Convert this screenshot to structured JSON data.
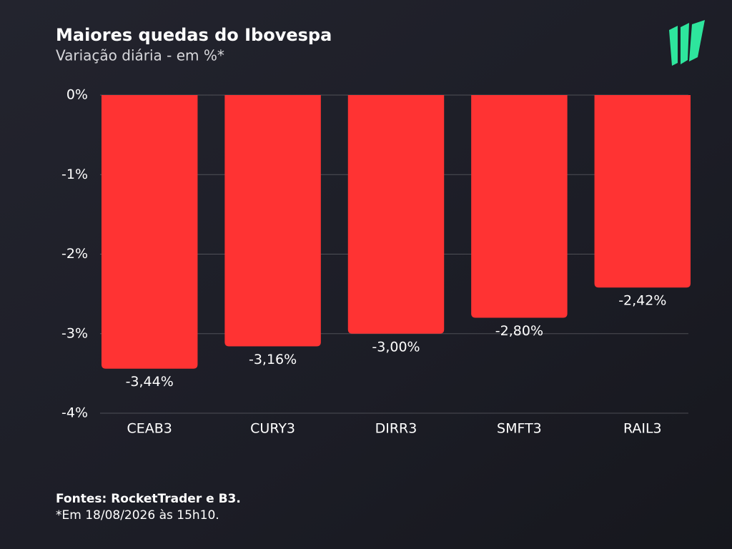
{
  "chart_data": {
    "type": "bar",
    "title": "Maiores quedas do Ibovespa",
    "subtitle": "Variação diária - em %*",
    "categories": [
      "CEAB3",
      "CURY3",
      "DIRR3",
      "SMFT3",
      "RAIL3"
    ],
    "values": [
      -3.44,
      -3.16,
      -3.0,
      -2.8,
      -2.42
    ],
    "value_labels": [
      "-3,44%",
      "-3,16%",
      "-3,00%",
      "-2,80%",
      "-2,42%"
    ],
    "color": "#ff3333",
    "ylim": [
      -4,
      0
    ],
    "yticks": [
      {
        "value": 0,
        "label": "0%"
      },
      {
        "value": -1,
        "label": "-1%"
      },
      {
        "value": -2,
        "label": "-2%"
      },
      {
        "value": -3,
        "label": "-3%"
      },
      {
        "value": -4,
        "label": "-4%"
      }
    ],
    "grid": true,
    "source": "Fontes: RocketTrader e B3.",
    "note": "*Em 18/08/2026 às 15h10."
  }
}
